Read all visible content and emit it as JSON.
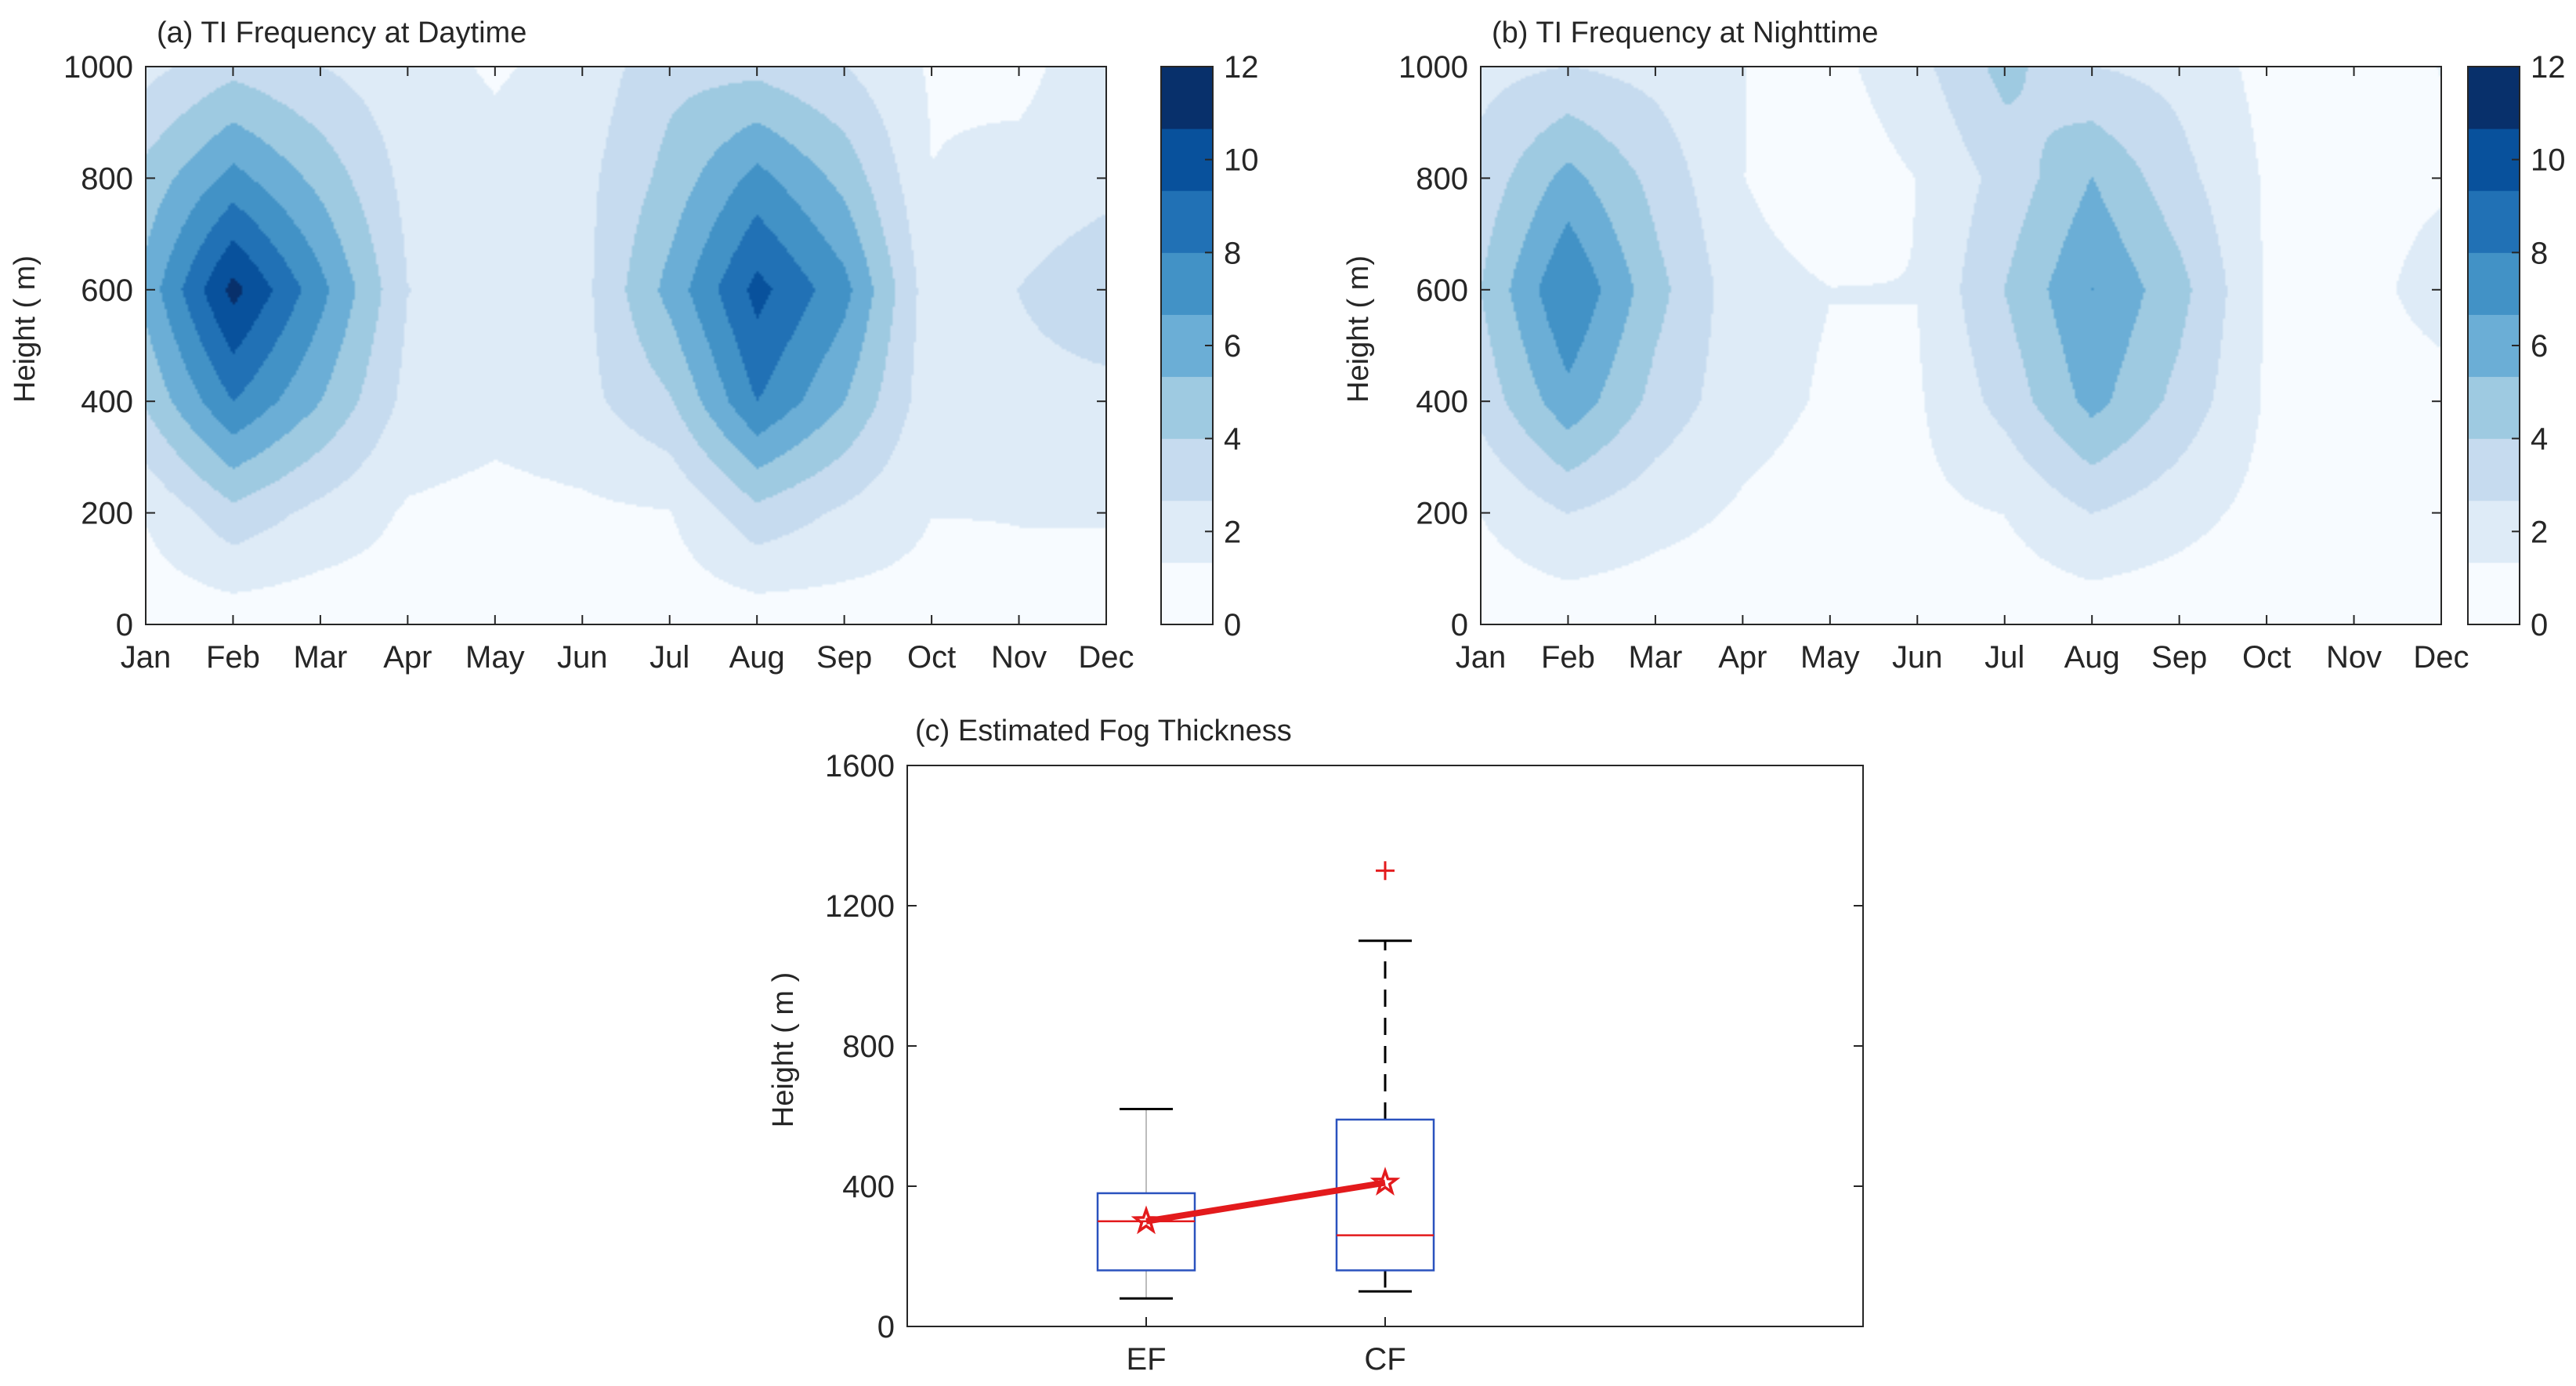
{
  "chart_data": [
    {
      "id": "a",
      "type": "contour",
      "title": "(a) TI Frequency at Daytime",
      "xlabel": "",
      "ylabel": "Height ( m)",
      "categories": [
        "Jan",
        "Feb",
        "Mar",
        "Apr",
        "May",
        "Jun",
        "Jul",
        "Aug",
        "Sep",
        "Oct",
        "Nov",
        "Dec"
      ],
      "ylim": [
        0,
        1000
      ],
      "yticks": [
        0,
        200,
        400,
        600,
        800,
        1000
      ],
      "heights": [
        0,
        200,
        400,
        600,
        800,
        1000
      ],
      "z": [
        [
          0.0,
          0.0,
          0.0,
          0.3,
          0.0,
          0.2,
          0.0,
          0.0,
          0.2,
          0.4,
          0.8,
          0.8
        ],
        [
          1.1,
          3.5,
          2.0,
          0.8,
          0.5,
          0.7,
          0.9,
          3.5,
          2.2,
          1.0,
          1.0,
          1.0
        ],
        [
          4.2,
          8.5,
          5.5,
          2.0,
          1.5,
          2.0,
          3.8,
          8.5,
          5.5,
          1.5,
          2.0,
          2.0
        ],
        [
          6.0,
          12.0,
          7.5,
          2.5,
          2.0,
          2.0,
          6.0,
          10.5,
          7.5,
          1.5,
          2.5,
          3.5
        ],
        [
          4.5,
          7.5,
          5.0,
          2.0,
          1.5,
          2.0,
          4.5,
          7.5,
          5.0,
          1.0,
          1.5,
          2.0
        ],
        [
          2.0,
          3.5,
          2.5,
          1.5,
          0.8,
          1.5,
          3.5,
          3.5,
          2.5,
          0.8,
          0.5,
          2.0
        ]
      ],
      "colorbar": {
        "limits": [
          0,
          12
        ],
        "ticks": [
          0,
          2,
          4,
          6,
          8,
          10,
          12
        ]
      }
    },
    {
      "id": "b",
      "type": "contour",
      "title": "(b) TI Frequency at Nighttime",
      "xlabel": "",
      "ylabel": "Height ( m)",
      "categories": [
        "Jan",
        "Feb",
        "Mar",
        "Apr",
        "May",
        "Jun",
        "Jul",
        "Aug",
        "Sep",
        "Oct",
        "Nov",
        "Dec"
      ],
      "ylim": [
        0,
        1000
      ],
      "yticks": [
        0,
        200,
        400,
        600,
        800,
        1000
      ],
      "heights": [
        0,
        200,
        400,
        600,
        800,
        1000
      ],
      "z": [
        [
          0.0,
          0.0,
          0.0,
          0.0,
          0.0,
          0.0,
          0.0,
          0.0,
          0.0,
          0.0,
          0.0,
          0.0
        ],
        [
          1.0,
          2.5,
          1.5,
          0.8,
          0.4,
          0.6,
          1.0,
          2.5,
          1.5,
          0.5,
          0.3,
          0.3
        ],
        [
          3.0,
          6.5,
          3.5,
          1.5,
          0.8,
          0.8,
          3.0,
          6.0,
          3.5,
          0.8,
          0.4,
          0.5
        ],
        [
          4.0,
          8.5,
          4.5,
          1.5,
          1.0,
          1.0,
          4.0,
          7.0,
          4.5,
          0.8,
          0.5,
          1.5
        ],
        [
          3.0,
          6.0,
          3.5,
          1.0,
          0.0,
          1.0,
          3.0,
          5.5,
          3.0,
          0.8,
          0.5,
          0.8
        ],
        [
          2.0,
          2.5,
          2.0,
          1.0,
          0.5,
          2.0,
          4.5,
          2.5,
          2.0,
          0.5,
          0.5,
          1.0
        ]
      ],
      "colorbar": {
        "limits": [
          0,
          12
        ],
        "ticks": [
          0,
          2,
          4,
          6,
          8,
          10,
          12
        ]
      }
    },
    {
      "id": "c",
      "type": "boxplot",
      "title": "(c) Estimated Fog Thickness",
      "xlabel": "",
      "ylabel": "Height ( m )",
      "categories": [
        "EF",
        "CF"
      ],
      "ylim": [
        0,
        1600
      ],
      "yticks": [
        0,
        400,
        800,
        1200,
        1600
      ],
      "boxes": [
        {
          "name": "EF",
          "whisker_low": 80,
          "q1": 160,
          "median": 300,
          "q3": 380,
          "whisker_high": 620,
          "mean": 300,
          "outliers": []
        },
        {
          "name": "CF",
          "whisker_low": 100,
          "q1": 160,
          "median": 260,
          "q3": 590,
          "whisker_high": 1100,
          "mean": 410,
          "outliers": [
            1300
          ]
        }
      ],
      "mean_line": {
        "color": "#e31a1c"
      }
    }
  ],
  "colors": {
    "colormap": [
      "#f7fbff",
      "#deebf7",
      "#c6dbef",
      "#9ecae1",
      "#6baed6",
      "#4292c6",
      "#2171b5",
      "#08519c",
      "#08306b"
    ],
    "axis": "#262626",
    "box": "#2a52be",
    "median": "#e31a1c",
    "outlier": "#e31a1c",
    "whisker": "#000000"
  }
}
